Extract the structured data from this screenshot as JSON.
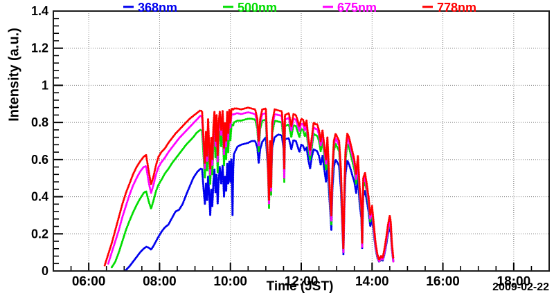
{
  "chart_data": {
    "type": "scatter-line",
    "title": "",
    "date_label": "2009-02-22",
    "x_axis": {
      "title": "Time (JST)",
      "range_hours": [
        5,
        19
      ],
      "tick_hours": [
        6,
        8,
        10,
        12,
        14,
        16,
        18
      ],
      "tick_labels": [
        "06:00",
        "08:00",
        "10:00",
        "12:00",
        "14:00",
        "16:00",
        "18:00"
      ],
      "minor_step_hours": 0.5
    },
    "y_axis": {
      "title": "Intensity (a.u.)",
      "range": [
        0,
        1.4
      ],
      "tick_values": [
        0,
        0.2,
        0.4,
        0.6,
        0.8,
        1,
        1.2,
        1.4
      ],
      "tick_labels": [
        "0",
        "0.2",
        "0.4",
        "0.6",
        "0.8",
        "1",
        "1.2",
        "1.4"
      ],
      "minor_step": 0.04
    },
    "grid": {
      "style": "dotted",
      "color": "#777777",
      "at": "major-ticks"
    },
    "legend": {
      "position": "top",
      "entries": [
        "368nm",
        "500nm",
        "675nm",
        "778nm"
      ]
    },
    "t_hours": [
      6.45,
      6.55,
      6.65,
      6.75,
      6.85,
      6.95,
      7.05,
      7.15,
      7.25,
      7.35,
      7.45,
      7.55,
      7.62,
      7.7,
      7.76,
      7.83,
      7.9,
      7.97,
      8.05,
      8.15,
      8.25,
      8.35,
      8.45,
      8.55,
      8.65,
      8.75,
      8.85,
      8.95,
      9.05,
      9.15,
      9.2,
      9.24,
      9.28,
      9.31,
      9.34,
      9.37,
      9.4,
      9.43,
      9.46,
      9.49,
      9.52,
      9.55,
      9.58,
      9.61,
      9.64,
      9.67,
      9.7,
      9.74,
      9.78,
      9.82,
      9.85,
      9.88,
      9.91,
      9.94,
      9.97,
      10,
      10.03,
      10.06,
      10.08,
      10.1,
      10.2,
      10.3,
      10.4,
      10.5,
      10.6,
      10.7,
      10.76,
      10.8,
      10.84,
      10.9,
      11,
      11.06,
      11.09,
      11.12,
      11.15,
      11.18,
      11.25,
      11.35,
      11.45,
      11.5,
      11.52,
      11.54,
      11.65,
      11.72,
      11.78,
      11.85,
      11.95,
      12,
      12.05,
      12.1,
      12.15,
      12.2,
      12.25,
      12.3,
      12.35,
      12.4,
      12.45,
      12.5,
      12.55,
      12.6,
      12.65,
      12.7,
      12.74,
      12.78,
      12.82,
      12.85,
      12.88,
      12.92,
      12.97,
      13.02,
      13.07,
      13.12,
      13.16,
      13.19,
      13.22,
      13.25,
      13.3,
      13.35,
      13.4,
      13.45,
      13.5,
      13.55,
      13.6,
      13.65,
      13.7,
      13.72,
      13.75,
      13.8,
      13.85,
      13.9,
      13.95,
      14,
      14.05,
      14.1,
      14.15,
      14.2,
      14.25,
      14.3,
      14.35,
      14.4,
      14.45,
      14.5,
      14.53,
      14.56,
      14.6
    ],
    "series": [
      {
        "name": "368nm",
        "color": "#0000ee",
        "values": [
          null,
          null,
          null,
          null,
          null,
          null,
          0.005,
          0.025,
          0.05,
          0.075,
          0.1,
          0.12,
          0.13,
          0.125,
          0.115,
          0.135,
          0.16,
          0.185,
          0.21,
          0.235,
          0.25,
          0.285,
          0.32,
          0.33,
          0.36,
          0.41,
          0.455,
          0.5,
          0.53,
          0.55,
          0.55,
          0.45,
          0.36,
          0.47,
          0.38,
          0.51,
          0.42,
          0.3,
          0.44,
          0.35,
          0.48,
          0.55,
          0.42,
          0.52,
          0.36,
          0.49,
          0.56,
          0.47,
          0.57,
          0.4,
          0.51,
          0.43,
          0.58,
          0.47,
          0.59,
          0.48,
          0.6,
          0.3,
          0.55,
          0.63,
          0.67,
          0.68,
          0.685,
          0.69,
          0.7,
          0.7,
          0.665,
          0.58,
          0.655,
          0.695,
          0.72,
          0.55,
          0.47,
          0.62,
          0.5,
          0.665,
          0.72,
          0.735,
          0.73,
          0.66,
          0.52,
          0.71,
          0.715,
          0.655,
          0.705,
          0.7,
          0.64,
          0.68,
          0.675,
          0.65,
          0.665,
          0.6,
          0.55,
          0.615,
          0.655,
          0.65,
          0.645,
          0.62,
          0.57,
          0.62,
          0.55,
          0.48,
          0.58,
          0.44,
          0.32,
          0.22,
          0.44,
          0.56,
          0.6,
          0.585,
          0.565,
          0.44,
          0.24,
          0.09,
          0.36,
          0.52,
          0.595,
          0.575,
          0.545,
          0.51,
          0.48,
          0.42,
          0.5,
          0.36,
          0.28,
          0.12,
          0.4,
          0.43,
          0.38,
          0.32,
          0.24,
          0.28,
          0.2,
          0.12,
          0.07,
          0.05,
          0.06,
          0.055,
          0.09,
          0.14,
          0.2,
          0.24,
          0.2,
          0.12,
          0.05
        ]
      },
      {
        "name": "500nm",
        "color": "#00dd00",
        "values": [
          null,
          null,
          0.02,
          0.05,
          0.1,
          0.16,
          0.22,
          0.27,
          0.315,
          0.355,
          0.39,
          0.42,
          0.43,
          0.37,
          0.335,
          0.38,
          0.43,
          0.465,
          0.49,
          0.525,
          0.55,
          0.58,
          0.605,
          0.63,
          0.655,
          0.68,
          0.7,
          0.72,
          0.745,
          0.76,
          0.755,
          0.63,
          0.5,
          0.66,
          0.54,
          0.72,
          0.59,
          0.47,
          0.62,
          0.52,
          0.68,
          0.755,
          0.61,
          0.74,
          0.53,
          0.7,
          0.755,
          0.67,
          0.765,
          0.57,
          0.7,
          0.6,
          0.765,
          0.64,
          0.775,
          0.7,
          0.78,
          0.79,
          0.785,
          0.8,
          0.81,
          0.81,
          0.815,
          0.82,
          0.82,
          0.815,
          0.765,
          0.645,
          0.765,
          0.81,
          0.815,
          0.55,
          0.34,
          0.65,
          0.41,
          0.74,
          0.81,
          0.805,
          0.8,
          0.7,
          0.48,
          0.78,
          0.79,
          0.72,
          0.785,
          0.78,
          0.72,
          0.765,
          0.76,
          0.725,
          0.75,
          0.665,
          0.6,
          0.665,
          0.74,
          0.73,
          0.73,
          0.7,
          0.645,
          0.7,
          0.625,
          0.545,
          0.66,
          0.5,
          0.355,
          0.25,
          0.5,
          0.645,
          0.685,
          0.665,
          0.645,
          0.5,
          0.26,
          0.1,
          0.4,
          0.595,
          0.685,
          0.665,
          0.625,
          0.585,
          0.545,
          0.47,
          0.565,
          0.405,
          0.315,
          0.13,
          0.45,
          0.48,
          0.425,
          0.355,
          0.265,
          0.315,
          0.22,
          0.125,
          0.075,
          0.05,
          0.065,
          0.06,
          0.1,
          0.155,
          0.215,
          0.26,
          0.22,
          0.125,
          0.05
        ]
      },
      {
        "name": "675nm",
        "color": "#ff00ff",
        "values": [
          null,
          0.04,
          0.1,
          0.16,
          0.22,
          0.29,
          0.35,
          0.41,
          0.46,
          0.5,
          0.535,
          0.56,
          0.565,
          0.47,
          0.42,
          0.465,
          0.52,
          0.56,
          0.585,
          0.61,
          0.64,
          0.665,
          0.69,
          0.715,
          0.735,
          0.755,
          0.775,
          0.795,
          0.815,
          0.835,
          0.83,
          0.69,
          0.55,
          0.72,
          0.59,
          0.79,
          0.65,
          0.52,
          0.69,
          0.57,
          0.75,
          0.83,
          0.67,
          0.81,
          0.59,
          0.77,
          0.83,
          0.73,
          0.835,
          0.63,
          0.77,
          0.67,
          0.83,
          0.71,
          0.84,
          0.77,
          0.84,
          0.845,
          0.84,
          0.845,
          0.85,
          0.845,
          0.85,
          0.855,
          0.85,
          0.845,
          0.795,
          0.675,
          0.795,
          0.845,
          0.85,
          0.575,
          0.36,
          0.675,
          0.43,
          0.775,
          0.845,
          0.84,
          0.835,
          0.725,
          0.5,
          0.815,
          0.825,
          0.755,
          0.82,
          0.815,
          0.755,
          0.795,
          0.79,
          0.755,
          0.785,
          0.695,
          0.625,
          0.695,
          0.775,
          0.765,
          0.765,
          0.735,
          0.675,
          0.735,
          0.655,
          0.575,
          0.695,
          0.525,
          0.375,
          0.27,
          0.525,
          0.675,
          0.715,
          0.695,
          0.675,
          0.525,
          0.27,
          0.1,
          0.42,
          0.625,
          0.715,
          0.695,
          0.655,
          0.615,
          0.575,
          0.495,
          0.595,
          0.425,
          0.33,
          0.13,
          0.475,
          0.505,
          0.445,
          0.375,
          0.28,
          0.33,
          0.23,
          0.13,
          0.08,
          0.05,
          0.07,
          0.06,
          0.1,
          0.16,
          0.22,
          0.27,
          0.23,
          0.13,
          0.05
        ]
      },
      {
        "name": "778nm",
        "color": "#ff0000",
        "values": [
          0.03,
          0.09,
          0.15,
          0.22,
          0.29,
          0.36,
          0.42,
          0.47,
          0.52,
          0.56,
          0.59,
          0.615,
          0.625,
          0.53,
          0.465,
          0.51,
          0.57,
          0.615,
          0.64,
          0.66,
          0.69,
          0.715,
          0.74,
          0.76,
          0.78,
          0.8,
          0.82,
          0.835,
          0.85,
          0.865,
          0.86,
          0.72,
          0.58,
          0.75,
          0.62,
          0.82,
          0.68,
          0.55,
          0.72,
          0.6,
          0.78,
          0.86,
          0.7,
          0.84,
          0.62,
          0.8,
          0.86,
          0.76,
          0.865,
          0.66,
          0.8,
          0.7,
          0.86,
          0.74,
          0.87,
          0.8,
          0.87,
          0.875,
          0.87,
          0.875,
          0.875,
          0.87,
          0.875,
          0.88,
          0.875,
          0.87,
          0.82,
          0.7,
          0.82,
          0.87,
          0.875,
          0.6,
          0.38,
          0.7,
          0.45,
          0.8,
          0.87,
          0.865,
          0.86,
          0.75,
          0.55,
          0.84,
          0.85,
          0.78,
          0.845,
          0.84,
          0.78,
          0.82,
          0.815,
          0.78,
          0.81,
          0.72,
          0.65,
          0.72,
          0.8,
          0.79,
          0.79,
          0.76,
          0.7,
          0.76,
          0.68,
          0.6,
          0.72,
          0.55,
          0.4,
          0.3,
          0.55,
          0.7,
          0.74,
          0.72,
          0.7,
          0.55,
          0.3,
          0.12,
          0.45,
          0.65,
          0.74,
          0.72,
          0.68,
          0.64,
          0.6,
          0.52,
          0.62,
          0.45,
          0.35,
          0.15,
          0.5,
          0.53,
          0.47,
          0.4,
          0.3,
          0.35,
          0.25,
          0.15,
          0.09,
          0.06,
          0.08,
          0.07,
          0.12,
          0.18,
          0.25,
          0.3,
          0.26,
          0.15,
          0.07
        ]
      }
    ]
  }
}
